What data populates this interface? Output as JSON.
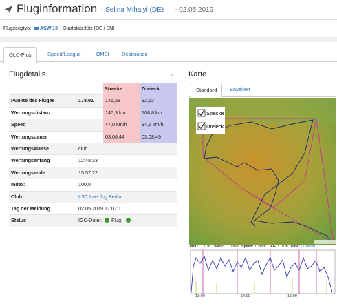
{
  "header": {
    "title": "Fluginformation",
    "pilot": "- Selina Mihalyi (DE)",
    "date": "- 02.05.2019"
  },
  "info": {
    "aircraft_label": "Flugzeugtyp:",
    "aircraft": "ASW 19",
    "site": "Startplatz:Klix (DE / SN)"
  },
  "tabs": [
    "OLC-Plus",
    "Speed/League",
    "DMSt",
    "Destination"
  ],
  "details": {
    "title": "Flugdetails",
    "collapse": "«",
    "columns": [
      "Strecke",
      "Dreieck"
    ],
    "rows": [
      {
        "label": "Punkte des Fluges",
        "value": "178.91",
        "strecke": "146,28",
        "dreieck": "32,62"
      },
      {
        "label": "Wertungsdistanz",
        "strecke": "146,3 km",
        "dreieck": "108,8 km"
      },
      {
        "label": "Speed",
        "strecke": "47,0 km/h",
        "dreieck": "34,6 km/h"
      },
      {
        "label": "Wertungsdauer",
        "strecke": "03:06:44",
        "dreieck": "03:08:49"
      },
      {
        "label": "Wertungsklasse",
        "value": "club"
      },
      {
        "label": "Wertungsanfang",
        "value": "12:48:33"
      },
      {
        "label": "Wertungsende",
        "value": "15:57:22"
      },
      {
        "label": "Index:",
        "value": "100,0"
      },
      {
        "label": "Club",
        "link": "LSC Interflug Berlin"
      },
      {
        "label": "Tag der Meldung",
        "value": "02.05.2019 17:07:11"
      },
      {
        "label": "Status",
        "igc": "IGC-Datei:",
        "flight": "Flug:"
      }
    ]
  },
  "map": {
    "title": "Karte",
    "tabs": [
      "Standard",
      "Erweitert"
    ],
    "layers": [
      "Strecke",
      "Dreieck"
    ],
    "barogram": {
      "labels": [
        "MSL:",
        "0 m",
        "Vario:",
        "0 m/s",
        "Speed:",
        "0 km/h",
        "AGL:",
        "0 m",
        "Time:",
        "00:00:00"
      ],
      "times": [
        "13:00",
        "14:00",
        "15:00"
      ]
    }
  }
}
